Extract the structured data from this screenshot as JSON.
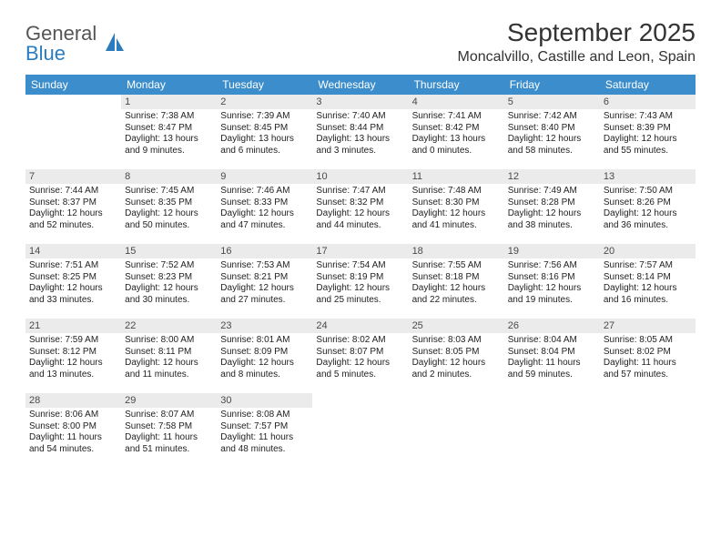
{
  "logo": {
    "text_top": "General",
    "text_bottom": "Blue"
  },
  "header": {
    "month_title": "September 2025",
    "location": "Moncalvillo, Castille and Leon, Spain"
  },
  "colors": {
    "header_bg": "#3c8dcc",
    "header_text": "#ffffff",
    "daynum_bg": "#ebebeb",
    "row_sep": "#3c8dcc",
    "body_text": "#222222",
    "page_bg": "#ffffff"
  },
  "weekdays": [
    "Sunday",
    "Monday",
    "Tuesday",
    "Wednesday",
    "Thursday",
    "Friday",
    "Saturday"
  ],
  "weeks": [
    [
      null,
      {
        "n": "1",
        "sunrise": "7:38 AM",
        "sunset": "8:47 PM",
        "daylight": "13 hours and 9 minutes."
      },
      {
        "n": "2",
        "sunrise": "7:39 AM",
        "sunset": "8:45 PM",
        "daylight": "13 hours and 6 minutes."
      },
      {
        "n": "3",
        "sunrise": "7:40 AM",
        "sunset": "8:44 PM",
        "daylight": "13 hours and 3 minutes."
      },
      {
        "n": "4",
        "sunrise": "7:41 AM",
        "sunset": "8:42 PM",
        "daylight": "13 hours and 0 minutes."
      },
      {
        "n": "5",
        "sunrise": "7:42 AM",
        "sunset": "8:40 PM",
        "daylight": "12 hours and 58 minutes."
      },
      {
        "n": "6",
        "sunrise": "7:43 AM",
        "sunset": "8:39 PM",
        "daylight": "12 hours and 55 minutes."
      }
    ],
    [
      {
        "n": "7",
        "sunrise": "7:44 AM",
        "sunset": "8:37 PM",
        "daylight": "12 hours and 52 minutes."
      },
      {
        "n": "8",
        "sunrise": "7:45 AM",
        "sunset": "8:35 PM",
        "daylight": "12 hours and 50 minutes."
      },
      {
        "n": "9",
        "sunrise": "7:46 AM",
        "sunset": "8:33 PM",
        "daylight": "12 hours and 47 minutes."
      },
      {
        "n": "10",
        "sunrise": "7:47 AM",
        "sunset": "8:32 PM",
        "daylight": "12 hours and 44 minutes."
      },
      {
        "n": "11",
        "sunrise": "7:48 AM",
        "sunset": "8:30 PM",
        "daylight": "12 hours and 41 minutes."
      },
      {
        "n": "12",
        "sunrise": "7:49 AM",
        "sunset": "8:28 PM",
        "daylight": "12 hours and 38 minutes."
      },
      {
        "n": "13",
        "sunrise": "7:50 AM",
        "sunset": "8:26 PM",
        "daylight": "12 hours and 36 minutes."
      }
    ],
    [
      {
        "n": "14",
        "sunrise": "7:51 AM",
        "sunset": "8:25 PM",
        "daylight": "12 hours and 33 minutes."
      },
      {
        "n": "15",
        "sunrise": "7:52 AM",
        "sunset": "8:23 PM",
        "daylight": "12 hours and 30 minutes."
      },
      {
        "n": "16",
        "sunrise": "7:53 AM",
        "sunset": "8:21 PM",
        "daylight": "12 hours and 27 minutes."
      },
      {
        "n": "17",
        "sunrise": "7:54 AM",
        "sunset": "8:19 PM",
        "daylight": "12 hours and 25 minutes."
      },
      {
        "n": "18",
        "sunrise": "7:55 AM",
        "sunset": "8:18 PM",
        "daylight": "12 hours and 22 minutes."
      },
      {
        "n": "19",
        "sunrise": "7:56 AM",
        "sunset": "8:16 PM",
        "daylight": "12 hours and 19 minutes."
      },
      {
        "n": "20",
        "sunrise": "7:57 AM",
        "sunset": "8:14 PM",
        "daylight": "12 hours and 16 minutes."
      }
    ],
    [
      {
        "n": "21",
        "sunrise": "7:59 AM",
        "sunset": "8:12 PM",
        "daylight": "12 hours and 13 minutes."
      },
      {
        "n": "22",
        "sunrise": "8:00 AM",
        "sunset": "8:11 PM",
        "daylight": "12 hours and 11 minutes."
      },
      {
        "n": "23",
        "sunrise": "8:01 AM",
        "sunset": "8:09 PM",
        "daylight": "12 hours and 8 minutes."
      },
      {
        "n": "24",
        "sunrise": "8:02 AM",
        "sunset": "8:07 PM",
        "daylight": "12 hours and 5 minutes."
      },
      {
        "n": "25",
        "sunrise": "8:03 AM",
        "sunset": "8:05 PM",
        "daylight": "12 hours and 2 minutes."
      },
      {
        "n": "26",
        "sunrise": "8:04 AM",
        "sunset": "8:04 PM",
        "daylight": "11 hours and 59 minutes."
      },
      {
        "n": "27",
        "sunrise": "8:05 AM",
        "sunset": "8:02 PM",
        "daylight": "11 hours and 57 minutes."
      }
    ],
    [
      {
        "n": "28",
        "sunrise": "8:06 AM",
        "sunset": "8:00 PM",
        "daylight": "11 hours and 54 minutes."
      },
      {
        "n": "29",
        "sunrise": "8:07 AM",
        "sunset": "7:58 PM",
        "daylight": "11 hours and 51 minutes."
      },
      {
        "n": "30",
        "sunrise": "8:08 AM",
        "sunset": "7:57 PM",
        "daylight": "11 hours and 48 minutes."
      },
      null,
      null,
      null,
      null
    ]
  ],
  "labels": {
    "sunrise_prefix": "Sunrise: ",
    "sunset_prefix": "Sunset: ",
    "daylight_prefix": "Daylight: "
  },
  "typography": {
    "month_title_fontsize": 28,
    "location_fontsize": 16,
    "weekday_fontsize": 12,
    "daynum_fontsize": 11,
    "body_fontsize": 10
  }
}
